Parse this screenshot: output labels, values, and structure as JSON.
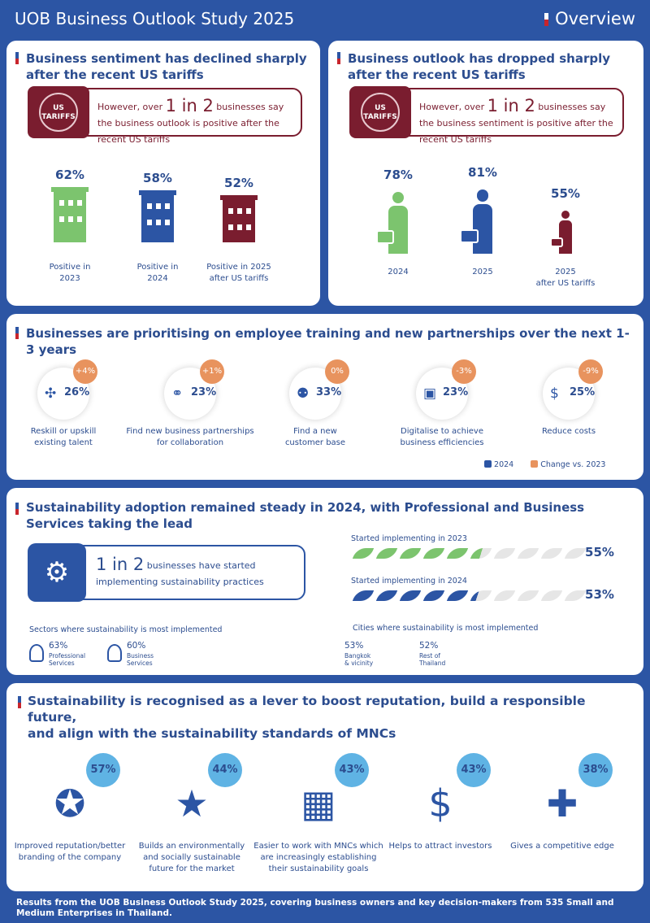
{
  "header": {
    "title": "UOB Business Outlook Study 2025",
    "section": "Overview"
  },
  "sentiment": {
    "heading": "Business sentiment has declined sharply after the recent US tariffs",
    "badge": "US TARIFFS",
    "callout_pre": "However, over ",
    "callout_big": "1 in 2",
    "callout_post": " businesses say the business outlook is positive after the recent US tariffs",
    "items": [
      {
        "value": "62%",
        "label_1": "Positive in",
        "label_2": "2023",
        "fraction": 0.62,
        "color": "#7cc46e"
      },
      {
        "value": "58%",
        "label_1": "Positive in",
        "label_2": "2024",
        "fraction": 0.58,
        "color": "#2c55a4"
      },
      {
        "value": "52%",
        "label_1": "Positive in 2025",
        "label_2": "after US tariffs",
        "fraction": 0.52,
        "color": "#7a1d2f"
      }
    ]
  },
  "outlook": {
    "heading": "Business outlook has dropped sharply after the recent US tariffs",
    "badge": "US TARIFFS",
    "callout_pre": "However, over ",
    "callout_big": "1 in 2",
    "callout_post": " businesses say the business sentiment is positive after the recent US tariffs",
    "items": [
      {
        "value": "78%",
        "label_1": "2024",
        "label_2": "",
        "fraction": 0.78,
        "color": "#7cc46e"
      },
      {
        "value": "81%",
        "label_1": "2025",
        "label_2": "",
        "fraction": 0.81,
        "color": "#2c55a4"
      },
      {
        "value": "55%",
        "label_1": "2025",
        "label_2": "after US tariffs",
        "fraction": 0.55,
        "color": "#7a1d2f"
      }
    ]
  },
  "priorities": {
    "heading": "Businesses are prioritising on employee training and new partnerships over the next 1-3 years",
    "items": [
      {
        "icon": "puzzle-icon",
        "glyph": "✣",
        "value": "26%",
        "change": "+4%",
        "label_1": "Reskill or upskill",
        "label_2": "existing talent"
      },
      {
        "icon": "handshake-icon",
        "glyph": "⚭",
        "value": "23%",
        "change": "+1%",
        "label_1": "Find new business partnerships",
        "label_2": "for collaboration"
      },
      {
        "icon": "people-icon",
        "glyph": "⚉",
        "value": "33%",
        "change": "0%",
        "label_1": "Find a new",
        "label_2": "customer base"
      },
      {
        "icon": "chip-icon",
        "glyph": "▣",
        "value": "23%",
        "change": "-3%",
        "label_1": "Digitalise to achieve",
        "label_2": "business efficiencies"
      },
      {
        "icon": "dollar-down-icon",
        "glyph": "$",
        "value": "25%",
        "change": "-9%",
        "label_1": "Reduce costs",
        "label_2": ""
      }
    ],
    "legend": {
      "a": "2024",
      "b": "Change vs. 2023",
      "color_a": "#2c55a4",
      "color_b": "#e8935e"
    }
  },
  "sustainability": {
    "heading": "Sustainability adoption remained steady in 2024, with Professional and Business Services taking the lead",
    "callout_big": "1 in 2",
    "callout_rest": " businesses have started implementing sustainability practices",
    "series": [
      {
        "label": "Started implementing in 2023",
        "value": "55%",
        "fraction": 0.55,
        "color": "#7cc46e"
      },
      {
        "label": "Started implementing in 2024",
        "value": "53%",
        "fraction": 0.53,
        "color": "#2c55a4"
      }
    ],
    "sectors_title": "Sectors where sustainability is most implemented",
    "sectors": [
      {
        "value": "63%",
        "label_1": "Professional",
        "label_2": "Services"
      },
      {
        "value": "60%",
        "label_1": "Business",
        "label_2": "Services"
      }
    ],
    "cities_title": "Cities where sustainability is most implemented",
    "cities": [
      {
        "value": "53%",
        "label_1": "Bangkok",
        "label_2": "& vicinity"
      },
      {
        "value": "52%",
        "label_1": "Rest of",
        "label_2": "Thailand"
      }
    ]
  },
  "benefits": {
    "heading_1": "Sustainability is recognised as a lever to boost reputation, build a responsible future,",
    "heading_2": "and align with the sustainability standards of MNCs",
    "items": [
      {
        "icon": "star-hand-icon",
        "value": "57%",
        "label_1": "Improved reputation/better",
        "label_2": "branding of the company",
        "label_3": ""
      },
      {
        "icon": "hands-star-icon",
        "value": "44%",
        "label_1": "Builds an environmentally",
        "label_2": "and socially sustainable",
        "label_3": "future for the market"
      },
      {
        "icon": "building-icon",
        "value": "43%",
        "label_1": "Easier to work with MNCs which",
        "label_2": "are increasingly establishing",
        "label_3": "their sustainability goals"
      },
      {
        "icon": "investors-icon",
        "value": "43%",
        "label_1": "Helps to attract investors",
        "label_2": "",
        "label_3": ""
      },
      {
        "icon": "team-puzzle-icon",
        "value": "38%",
        "label_1": "Gives a competitive edge",
        "label_2": "",
        "label_3": ""
      }
    ]
  },
  "footer": "Results from the UOB Business Outlook Study 2025, covering business owners and key decision-makers from 535 Small and Medium Enterprises in Thailand."
}
